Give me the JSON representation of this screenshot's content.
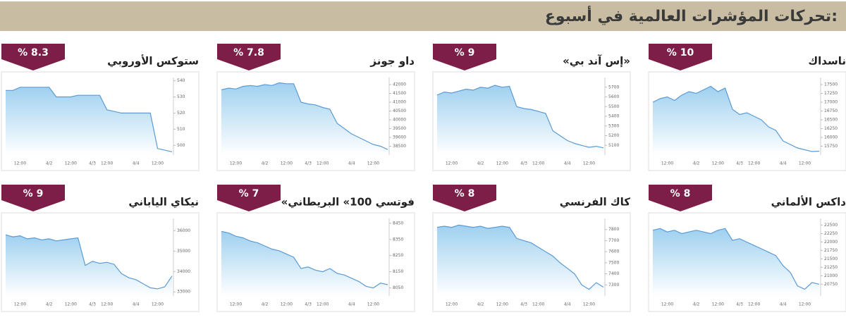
{
  "header": {
    "title": "تحركات المؤشرات العالمية في أسبوع:"
  },
  "chart_data": [
    {
      "type": "line",
      "title": "ناسداك",
      "badge": "% 10",
      "color": "#5b9bd5",
      "ylim": [
        15500,
        17700
      ],
      "yticks": [
        17500,
        17250,
        17000,
        16750,
        16500,
        16250,
        16000,
        15750
      ],
      "categories": [
        null,
        null,
        "12:00",
        null,
        null,
        null,
        "4/2",
        null,
        null,
        "12:00",
        null,
        null,
        "4/3",
        null,
        "12:00",
        null,
        null,
        null,
        "4/4",
        null,
        null,
        "12:00",
        null,
        null
      ],
      "values": [
        17000,
        17100,
        17150,
        17050,
        17200,
        17300,
        17250,
        17350,
        17450,
        17300,
        17400,
        16800,
        16650,
        16700,
        16600,
        16500,
        16300,
        16200,
        15900,
        15800,
        15700,
        15650,
        15600,
        15610
      ]
    },
    {
      "type": "line",
      "title": "«إس آند بي»",
      "badge": "% 9",
      "color": "#5b9bd5",
      "ylim": [
        5000,
        5800
      ],
      "yticks": [
        5700,
        5600,
        5500,
        5400,
        5300,
        5200,
        5100
      ],
      "categories": [
        null,
        null,
        "12:00",
        null,
        null,
        null,
        "4/2",
        null,
        null,
        "12:00",
        null,
        null,
        "4/3",
        null,
        "12:00",
        null,
        null,
        null,
        "4/4",
        null,
        null,
        "12:00",
        null,
        null
      ],
      "values": [
        5620,
        5650,
        5640,
        5660,
        5680,
        5670,
        5700,
        5690,
        5720,
        5700,
        5710,
        5500,
        5480,
        5470,
        5450,
        5430,
        5250,
        5200,
        5150,
        5120,
        5100,
        5080,
        5090,
        5074
      ]
    },
    {
      "type": "line",
      "title": "داو جونز",
      "badge": "% 7.8",
      "color": "#5b9bd5",
      "ylim": [
        38000,
        42400
      ],
      "yticks": [
        42000,
        41500,
        41000,
        40500,
        40000,
        39500,
        39000,
        38500
      ],
      "categories": [
        null,
        null,
        "12:00",
        null,
        null,
        null,
        "4/2",
        null,
        null,
        "12:00",
        null,
        null,
        "4/3",
        null,
        "12:00",
        null,
        null,
        null,
        "4/4",
        null,
        null,
        "12:00",
        null,
        null
      ],
      "values": [
        41700,
        41800,
        41750,
        41900,
        41950,
        41900,
        42000,
        41950,
        42100,
        42050,
        42050,
        41000,
        40900,
        40850,
        40700,
        40600,
        39800,
        39500,
        39200,
        39000,
        38800,
        38600,
        38500,
        38314
      ]
    },
    {
      "type": "line",
      "title": "ستوكس الأوروبي",
      "badge": "% 8.3",
      "color": "#5b9bd5",
      "ylim": [
        494,
        542
      ],
      "yticks": [
        540,
        530,
        520,
        510,
        500
      ],
      "categories": [
        null,
        null,
        "12:00",
        null,
        null,
        null,
        "4/2",
        null,
        null,
        "12:00",
        null,
        null,
        "4/3",
        null,
        "12:00",
        null,
        null,
        null,
        "4/4",
        null,
        null,
        "12:00",
        null,
        null
      ],
      "values": [
        534,
        534,
        536,
        536,
        536,
        536,
        536,
        530,
        530,
        530,
        531,
        531,
        531,
        531,
        522,
        521,
        520,
        520,
        520,
        520,
        520,
        498,
        497,
        496
      ]
    },
    {
      "type": "line",
      "title": "داكس الألماني",
      "badge": "% 8",
      "color": "#5b9bd5",
      "ylim": [
        20400,
        22700
      ],
      "yticks": [
        22500,
        22250,
        22000,
        21750,
        21500,
        21250,
        21000,
        20750
      ],
      "categories": [
        null,
        null,
        "12:00",
        null,
        null,
        null,
        "4/2",
        null,
        null,
        "12:00",
        null,
        null,
        "4/3",
        null,
        "12:00",
        null,
        null,
        null,
        "4/4",
        null,
        null,
        "12:00",
        null,
        null
      ],
      "values": [
        22350,
        22400,
        22300,
        22350,
        22250,
        22300,
        22350,
        22300,
        22250,
        22350,
        22400,
        22050,
        22100,
        22000,
        21900,
        21800,
        21700,
        21600,
        21300,
        21100,
        20700,
        20600,
        20800,
        20750
      ]
    },
    {
      "type": "line",
      "title": "كاك الفرنسي",
      "badge": "% 8",
      "color": "#5b9bd5",
      "ylim": [
        7200,
        7900
      ],
      "yticks": [
        7800,
        7700,
        7600,
        7500,
        7400,
        7300
      ],
      "categories": [
        null,
        null,
        "12:00",
        null,
        null,
        null,
        "4/2",
        null,
        null,
        "12:00",
        null,
        null,
        "4/3",
        null,
        "12:00",
        null,
        null,
        null,
        "4/4",
        null,
        null,
        "12:00",
        null,
        null
      ],
      "values": [
        7820,
        7830,
        7820,
        7840,
        7830,
        7820,
        7830,
        7810,
        7820,
        7830,
        7820,
        7720,
        7700,
        7680,
        7640,
        7600,
        7560,
        7500,
        7450,
        7400,
        7300,
        7260,
        7320,
        7280
      ]
    },
    {
      "type": "line",
      "title": "«فوتسي 100» البريطاني",
      "badge": "% 7",
      "color": "#5b9bd5",
      "ylim": [
        8000,
        8480
      ],
      "yticks": [
        8450,
        8350,
        8250,
        8150,
        8050
      ],
      "categories": [
        null,
        null,
        "12:00",
        null,
        null,
        null,
        "4/2",
        null,
        null,
        "12:00",
        null,
        null,
        "4/3",
        null,
        "12:00",
        null,
        null,
        null,
        "4/4",
        null,
        null,
        "12:00",
        null,
        null
      ],
      "values": [
        8400,
        8390,
        8370,
        8360,
        8340,
        8330,
        8310,
        8290,
        8280,
        8260,
        8240,
        8170,
        8180,
        8160,
        8150,
        8170,
        8140,
        8130,
        8110,
        8090,
        8060,
        8050,
        8080,
        8070
      ]
    },
    {
      "type": "line",
      "title": "نيكاي الياباني",
      "badge": "% 9",
      "color": "#5b9bd5",
      "ylim": [
        32800,
        36600
      ],
      "yticks": [
        36000,
        35000,
        34000,
        33000
      ],
      "categories": [
        null,
        null,
        "12:00",
        null,
        null,
        null,
        "4/2",
        null,
        null,
        "12:00",
        null,
        null,
        "4/3",
        null,
        "12:00",
        null,
        null,
        null,
        "4/4",
        null,
        null,
        "12:00",
        null,
        null
      ],
      "values": [
        35800,
        35700,
        35750,
        35600,
        35650,
        35550,
        35600,
        35500,
        35550,
        35600,
        35650,
        34300,
        34500,
        34400,
        34450,
        34350,
        33900,
        33700,
        33600,
        33400,
        33200,
        33150,
        33250,
        33780
      ]
    }
  ]
}
